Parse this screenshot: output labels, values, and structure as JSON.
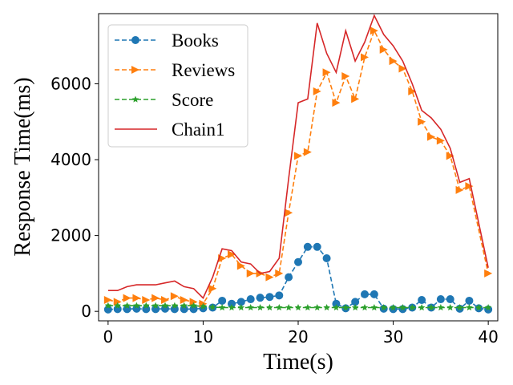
{
  "chart_data": {
    "type": "line",
    "xlabel": "Time(s)",
    "ylabel": "Response Time(ms)",
    "xlim": [
      -1,
      41
    ],
    "ylim": [
      -250,
      7850
    ],
    "xticks": [
      0,
      10,
      20,
      30,
      40
    ],
    "yticks": [
      0,
      2000,
      4000,
      6000
    ],
    "legend_position": "upper-left",
    "grid": false,
    "series": [
      {
        "name": "Books",
        "color": "#1f77b4",
        "linestyle": "dashed",
        "marker": "circle",
        "x": [
          0,
          1,
          2,
          3,
          4,
          5,
          6,
          7,
          8,
          9,
          10,
          11,
          12,
          13,
          14,
          15,
          16,
          17,
          18,
          19,
          20,
          21,
          22,
          23,
          24,
          25,
          26,
          27,
          28,
          29,
          30,
          31,
          32,
          33,
          34,
          35,
          36,
          37,
          38,
          39,
          40
        ],
        "values": [
          50,
          60,
          60,
          70,
          60,
          60,
          70,
          60,
          60,
          60,
          80,
          100,
          280,
          200,
          250,
          320,
          360,
          380,
          420,
          900,
          1300,
          1700,
          1700,
          1400,
          200,
          80,
          250,
          450,
          450,
          70,
          60,
          60,
          100,
          300,
          100,
          320,
          320,
          70,
          280,
          80,
          50
        ]
      },
      {
        "name": "Reviews",
        "color": "#ff7f0e",
        "linestyle": "dashed",
        "marker": "triangle-right",
        "x": [
          0,
          1,
          2,
          3,
          4,
          5,
          6,
          7,
          8,
          9,
          10,
          11,
          12,
          13,
          14,
          15,
          16,
          17,
          18,
          19,
          20,
          21,
          22,
          23,
          24,
          25,
          26,
          27,
          28,
          29,
          30,
          31,
          32,
          33,
          34,
          35,
          36,
          37,
          38,
          40
        ],
        "values": [
          300,
          250,
          350,
          350,
          300,
          350,
          300,
          400,
          300,
          250,
          200,
          600,
          1400,
          1500,
          1200,
          1000,
          1000,
          900,
          1000,
          2600,
          4100,
          4200,
          5800,
          6300,
          5500,
          6200,
          5600,
          6700,
          7400,
          6900,
          6600,
          6400,
          5800,
          5000,
          4600,
          4500,
          4100,
          3200,
          3300,
          1000
        ]
      },
      {
        "name": "Score",
        "color": "#2ca02c",
        "linestyle": "dashed",
        "marker": "star",
        "x": [
          0,
          1,
          2,
          3,
          4,
          5,
          6,
          7,
          8,
          9,
          10,
          11,
          12,
          13,
          14,
          15,
          16,
          17,
          18,
          19,
          20,
          21,
          22,
          23,
          24,
          25,
          26,
          27,
          28,
          29,
          30,
          31,
          32,
          33,
          34,
          35,
          36,
          37,
          38,
          39,
          40
        ],
        "values": [
          150,
          150,
          150,
          150,
          150,
          150,
          150,
          150,
          150,
          150,
          130,
          110,
          100,
          100,
          100,
          100,
          100,
          100,
          100,
          100,
          100,
          100,
          100,
          100,
          100,
          100,
          100,
          100,
          100,
          100,
          100,
          100,
          100,
          100,
          100,
          100,
          100,
          100,
          100,
          100,
          100
        ]
      },
      {
        "name": "Chain1",
        "color": "#d62728",
        "linestyle": "solid",
        "marker": "none",
        "x": [
          0,
          1,
          2,
          3,
          4,
          5,
          6,
          7,
          8,
          9,
          10,
          11,
          12,
          13,
          14,
          15,
          16,
          17,
          18,
          19,
          20,
          21,
          22,
          23,
          24,
          25,
          26,
          27,
          28,
          29,
          30,
          31,
          32,
          33,
          34,
          35,
          36,
          37,
          38,
          40
        ],
        "values": [
          550,
          550,
          650,
          700,
          700,
          700,
          750,
          800,
          650,
          600,
          350,
          900,
          1650,
          1600,
          1300,
          1250,
          1000,
          1050,
          1400,
          3500,
          5500,
          5600,
          7600,
          6800,
          6300,
          7400,
          6600,
          7100,
          7800,
          7300,
          7000,
          6600,
          6000,
          5300,
          5100,
          4800,
          4300,
          3400,
          3500,
          1150
        ]
      }
    ]
  }
}
